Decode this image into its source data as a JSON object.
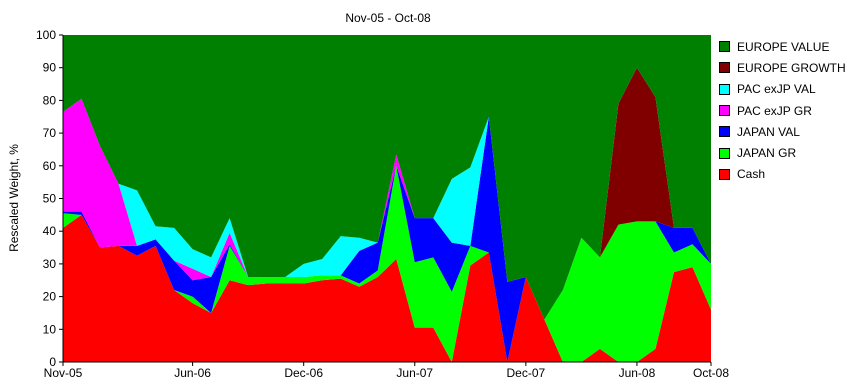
{
  "chart_data": {
    "type": "area",
    "stacked": true,
    "title": "Nov-05 - Oct-08",
    "xlabel": "",
    "ylabel": "Rescaled Weight, %",
    "ylim": [
      0,
      100
    ],
    "yticks": [
      0,
      10,
      20,
      30,
      40,
      50,
      60,
      70,
      80,
      90,
      100
    ],
    "xtick_labels": [
      "Nov-05",
      "Jun-06",
      "Dec-06",
      "Jun-07",
      "Dec-07",
      "Jun-08",
      "Oct-08"
    ],
    "grid": false,
    "legend_position": "right",
    "x": [
      "Nov-05",
      "Dec-05",
      "Jan-06",
      "Feb-06",
      "Mar-06",
      "Apr-06",
      "May-06",
      "Jun-06",
      "Jul-06",
      "Aug-06",
      "Sep-06",
      "Oct-06",
      "Nov-06",
      "Dec-06",
      "Jan-07",
      "Feb-07",
      "Mar-07",
      "Apr-07",
      "May-07",
      "Jun-07",
      "Jul-07",
      "Aug-07",
      "Sep-07",
      "Oct-07",
      "Nov-07",
      "Dec-07",
      "Jan-08",
      "Feb-08",
      "Mar-08",
      "Apr-08",
      "May-08",
      "Jun-08",
      "Jul-08",
      "Aug-08",
      "Sep-08",
      "Oct-08"
    ],
    "series": [
      {
        "name": "Cash",
        "color": "#ff0000",
        "values": [
          41,
          45,
          35,
          35.5,
          32.5,
          35.5,
          22,
          18,
          15,
          25,
          23.5,
          24,
          24,
          24,
          25,
          25.5,
          23,
          26,
          31.5,
          10.5,
          10.5,
          0,
          29.5,
          33.5,
          0,
          26,
          13,
          0,
          0,
          4,
          0,
          0,
          4,
          27.5,
          29,
          16
        ]
      },
      {
        "name": "JAPAN GR",
        "color": "#00ff00",
        "values": [
          4.5,
          0,
          0,
          0,
          0,
          0,
          0,
          2,
          0,
          10.5,
          2.5,
          2,
          2,
          2,
          1.5,
          1,
          1,
          2,
          28.5,
          20,
          21.5,
          21.5,
          6,
          0,
          0,
          0,
          0,
          22,
          38,
          28,
          42,
          43,
          39,
          6,
          7,
          14
        ]
      },
      {
        "name": "JAPAN VAL",
        "color": "#0000ff",
        "values": [
          0.5,
          1,
          0,
          0,
          3,
          2,
          9,
          5,
          11,
          0.5,
          0,
          0,
          0,
          0,
          0,
          0,
          10,
          8.5,
          0,
          13.5,
          12,
          15,
          0,
          41.5,
          24.5,
          0,
          0,
          0,
          0,
          0,
          0,
          0,
          0,
          7.5,
          5,
          0
        ]
      },
      {
        "name": "PAC exJP GR",
        "color": "#ff00ff",
        "values": [
          30.5,
          34.5,
          31,
          19,
          0,
          0,
          0,
          3.5,
          0,
          3.5,
          0,
          0,
          0,
          0,
          0,
          0,
          0,
          0,
          3.5,
          0,
          0,
          0,
          0,
          0,
          0,
          0,
          0,
          0,
          0,
          0,
          0,
          0,
          0,
          0,
          0,
          0
        ]
      },
      {
        "name": "PAC exJP VAL",
        "color": "#00ffff",
        "values": [
          0,
          0,
          0,
          0,
          17,
          4,
          10,
          6,
          6,
          4.5,
          0,
          0,
          0,
          4,
          5,
          12,
          4,
          0,
          0,
          0,
          0,
          19.5,
          24,
          0,
          0,
          0,
          0,
          0,
          0,
          0,
          0,
          0,
          0,
          0,
          0,
          0
        ]
      },
      {
        "name": "EUROPE GROWTH",
        "color": "#800000",
        "values": [
          0,
          0,
          0,
          0,
          0,
          0,
          0,
          0,
          0,
          0,
          0,
          0,
          0,
          0,
          0,
          0,
          0,
          0,
          0,
          0,
          0,
          0,
          0,
          0,
          0,
          0,
          0,
          0,
          0,
          0,
          37,
          47,
          38,
          0,
          0,
          0
        ]
      },
      {
        "name": "EUROPE VALUE",
        "color": "#008000",
        "values": [
          23.5,
          19.5,
          34,
          45.5,
          47.5,
          58.5,
          59,
          65.5,
          68,
          56,
          74,
          74,
          74,
          70,
          68.5,
          61.5,
          62,
          63.5,
          36.5,
          56,
          56,
          44,
          40.5,
          25,
          75.5,
          74,
          87,
          78,
          62,
          68,
          21,
          10,
          19,
          59,
          59,
          70
        ]
      }
    ]
  },
  "legend": {
    "items": [
      {
        "label": "EUROPE VALUE",
        "color": "#008000"
      },
      {
        "label": "EUROPE GROWTH",
        "color": "#800000"
      },
      {
        "label": "PAC exJP VAL",
        "color": "#00ffff"
      },
      {
        "label": "PAC exJP GR",
        "color": "#ff00ff"
      },
      {
        "label": "JAPAN VAL",
        "color": "#0000ff"
      },
      {
        "label": "JAPAN GR",
        "color": "#00ff00"
      },
      {
        "label": "Cash",
        "color": "#ff0000"
      }
    ]
  }
}
